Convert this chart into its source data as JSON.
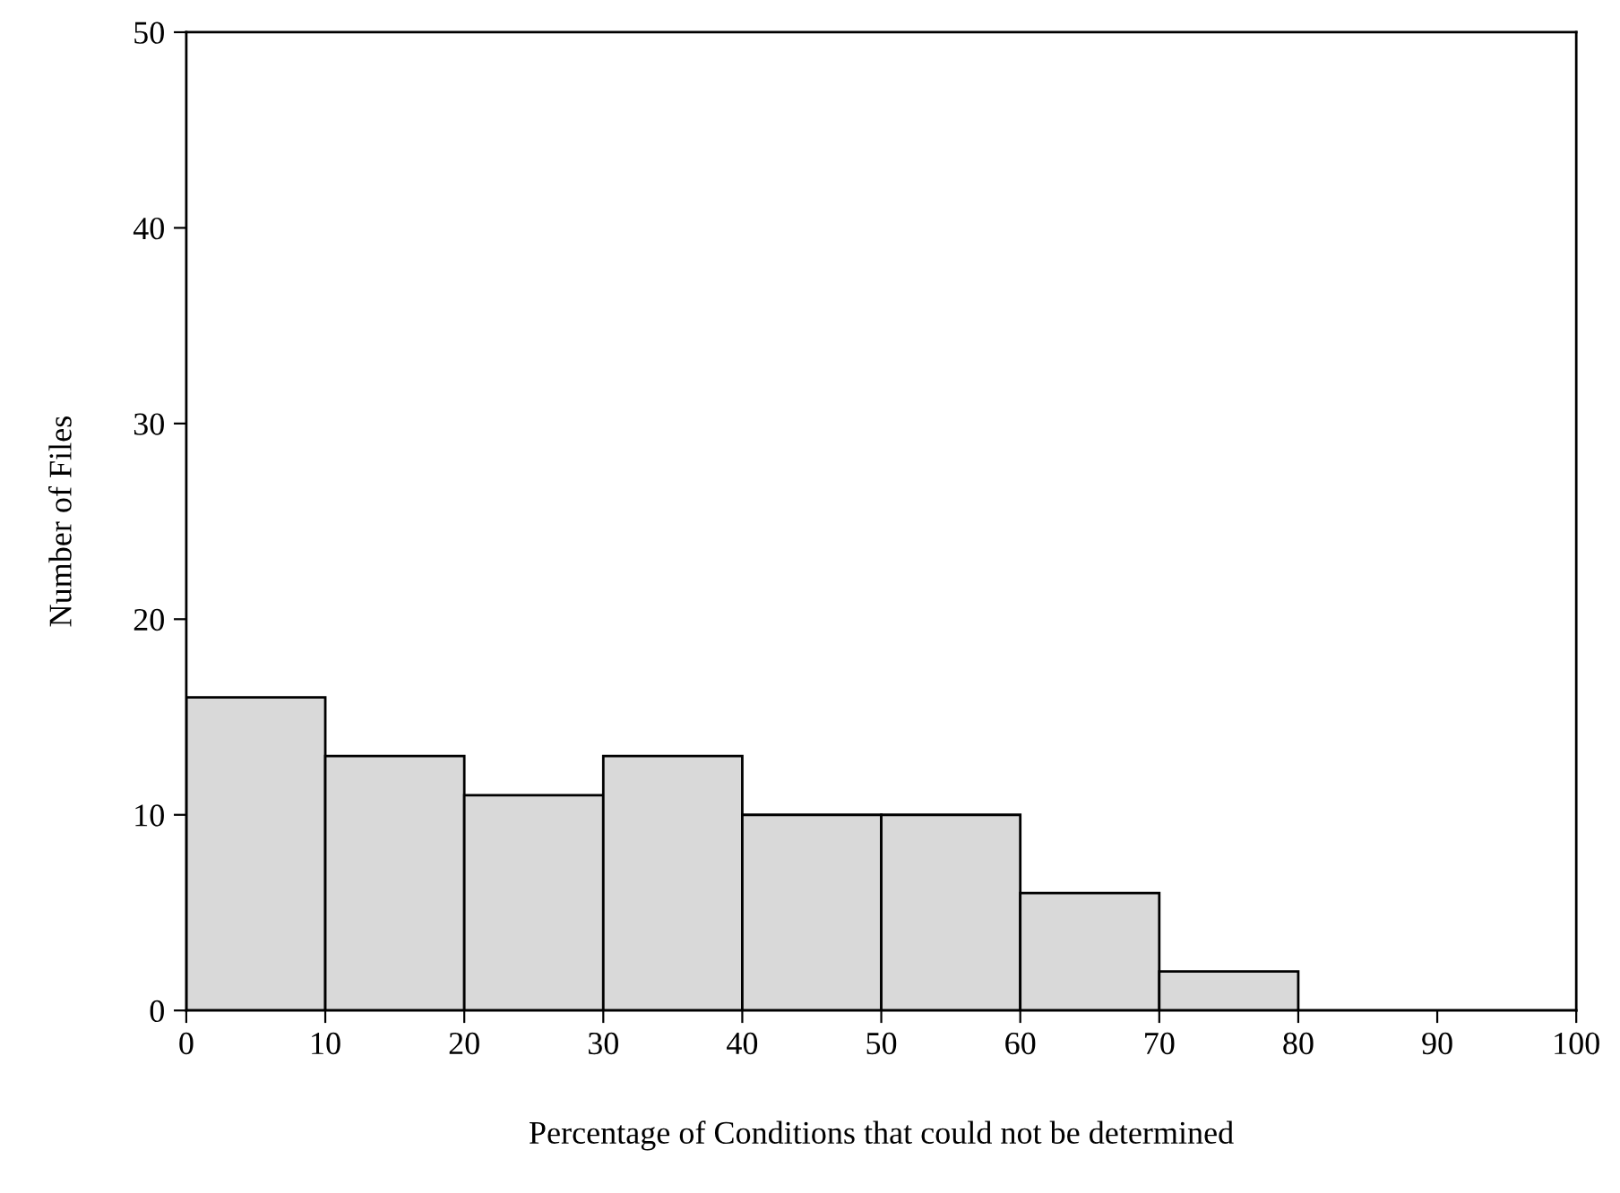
{
  "chart_data": {
    "type": "histogram",
    "xlabel": "Percentage of Conditions that could not be determined",
    "ylabel": "Number of Files",
    "bins": [
      0,
      10,
      20,
      30,
      40,
      50,
      60,
      70,
      80,
      90,
      100
    ],
    "values": [
      16,
      13,
      11,
      13,
      10,
      10,
      6,
      2,
      0,
      0
    ],
    "color": "#d9d9d9",
    "xlim": [
      0,
      100
    ],
    "xticks": [
      0,
      10,
      20,
      30,
      40,
      50,
      60,
      70,
      80,
      90,
      100
    ],
    "ylim": [
      0,
      50
    ],
    "yticks": [
      0,
      10,
      20,
      30,
      40,
      50
    ],
    "grid": false
  }
}
